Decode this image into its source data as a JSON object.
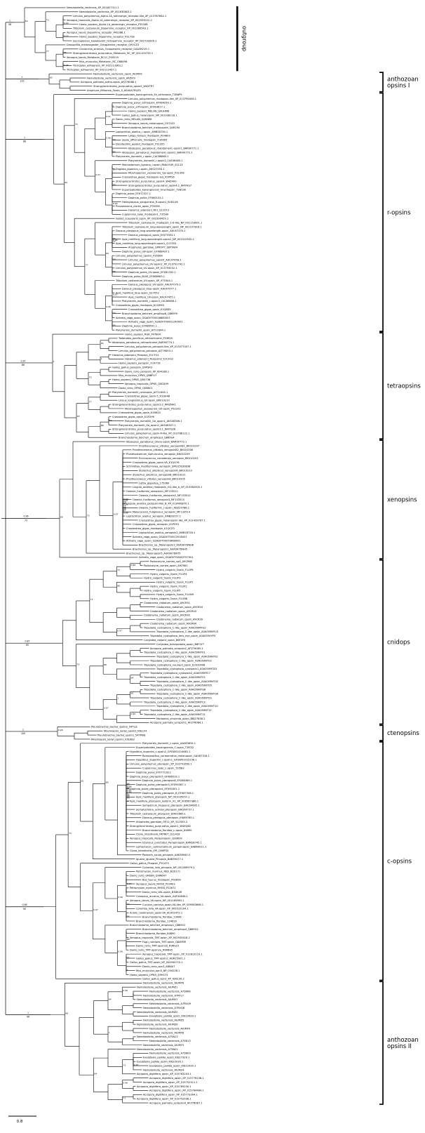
{
  "figure": {
    "background": "#ffffff",
    "line_color": "#000000",
    "scale_bar": {
      "label": "0.8"
    }
  },
  "support_pool": [
    "1",
    "100",
    "0.99",
    "98",
    "0.97",
    "96",
    "73",
    "0.92",
    "86",
    "62",
    "0.96",
    "90",
    "77",
    "0.86",
    "64",
    "0.94",
    "88",
    "0.95",
    "65",
    "0.98"
  ],
  "clades": [
    {
      "name": "outgroup",
      "marker": "bar",
      "label_lines": [
        "outgroup"
      ],
      "root_support": {
        "above": "1",
        "below": "98"
      },
      "tips": [
        "Nematostella_vectensis_XP_001627311.1",
        "Nematostella_vectensis_XP_001630803.1",
        "Limulus_polyphemus_Alpha-1A_adrenergic_receptor-like_XP_013787844.1",
        "Xenopus_tropicalis_Alpha-1A_adrenergic_receptor_XP_002933012.2",
        "Homo_sapiens_Alpha-1A_adrenergic_receptor_P35348",
        "Tribolium_castaneum_Dopamine_receptor_XP_001280543.1",
        "Xenopus_laevis_Dopamine_receptor_P42288.1",
        "Homo_sapiens_Dopamine_receptor_P21728",
        "Saccoglossus_kowalevskii_Octopamine_receptor_XP_002733926.1",
        "Drosophila_melanogaster_Octopamine_receptor_Q9VCZ3",
        "Clonorchis_sinensis_Octopamine_receptor_GAA38219.1",
        "Strongylocentrotus_purpuratus_Melatonin_RC_XP_001100735.1",
        "Xenopus_laevis_Melatonin_RC1C_P49219",
        "Mus_musculus_Melatonin_RC_O88496",
        "Trichoplax_adhaerens_XP_002113363.1",
        "Trichoplax_adhaerens_XP_002112437.1"
      ]
    },
    {
      "name": "anthozoan-opsins-I",
      "marker": "bracket",
      "label_lines": [
        "anthozoan",
        "opsins I"
      ],
      "root_support": {
        "above": "1",
        "below": "100"
      },
      "tips": [
        "Nematostella_vectensis_opsin_AIUM99",
        "Nematostella_vectensis_opsin_AKJ5V9",
        "Acropora_palmata_antho-opsin_AFZ76088.1",
        "Strongylocentrotus_purpuratus_opsin5_W4XTR7",
        "Amphiura_filiformis_Opsin_5_A0A0A7RUZ5"
      ]
    },
    {
      "name": "r-opsins",
      "marker": "bracket",
      "label_lines": [
        "r-opsins"
      ],
      "root_support": {
        "above": "1",
        "below": "88"
      },
      "tips": [
        "Euperipatoides_kanangrensis_Ek_arthropsin_T2B6P9",
        "Limulus_polyphemus_rhodopsin-like_XP_013790456.1",
        "Daphnia_pulex_arthropsin_EFX84250.1",
        "Daphnia_pulex_arthropsin_EFX63617.1",
        "Homo_sapiens_MELAN_Q9UHM6",
        "Gallus_gallus_melanopsin_NP_001038118.1",
        "Danio_rerio_MELAN_Q2KNE8",
        "Xenopus_laevis_melanopsin_O57422",
        "Branchiostoma_belcheri_melanopsin_Q4R194",
        "Leptochiton_asellus_r-opsin_AMB28726.1",
        "Loligo_forbesi_rhodopsin_P24603",
        "Sepia_officinalis_rhodopsin_O16005",
        "Doryteuthis_pealeii_rhodopsin_P31355",
        "Idiosepius_paradoxus_rhabdomeric-opsin1_BAR90771.1",
        "Idiosepius_paradoxus_rhabdomeric-opsin2_BAR90772.1",
        "Platynereis_dumerilii_r-opsin_CAC86665.1",
        "Platynereis_dumerilii_r-opsin2_CAE46485.1",
        "Macrostomum_lignano_r-opsin_RNA1509_41123",
        "Dugesia_japonica_r-opsin_AKG27054.1",
        "Mizuhopecten_yessoensis_Gq-opsin_P31356",
        "Crassostrea_gigas_rhodopsin-GQ_K1PP26",
        "Strongylocentrotus_purpuratus_opsin4_W4Z400",
        "Strongylocentrotus_purpuratus_opsin4.2_W4YHS7",
        "Euperipatoides_kanangrensis_Onychopsin_T2B530",
        "Daphnia_pulex_EFX72327.1",
        "Daphnia_pulex_EFX60131.1",
        "Hemigrapsus_sanguineus_R-opsin1_B1B1U6",
        "Procambarus_clarkii_opsin_P35356",
        "Hasarius_adansoni_Rh1_E1CFF3",
        "Cupiennius_salei_rhodopsin1_T2I5A9",
        "Ixodes_scapularis_opsin_XP_002399429.1",
        "Tribolium_castaneum_rhodopsin_1-6-like_NP_001153991.1",
        "Tribolium_castaneum_long-wavelength_opsin_NP_001107818.1",
        "Danaus_plexippus_long-wavelength-opsin_AAU07075.1",
        "Danaus_plexippus_opsin_EHJ73353.1",
        "Apis_mellifera_long-wavelength-opsin2_NP_001010932.2",
        "Apis_mellifera_long-wavelength-opsin1_Q17053",
        "Anopheles_gambiae_GPROP7_Q8T9W4",
        "Daphnia_pulex_LW-opsin_EFX88437.1",
        "Limulus_polyphemus_opsin2_P35360",
        "Limulus_polyphemus_opsin5_AAC47458.1",
        "Limulus_polyphemus_UV-opsin2_XP_013791742.1",
        "Limulus_polyphemus_UV-opsin_XP_013794152.1",
        "Daphnia_pulex_UV-opsin_EFX81332.1",
        "Daphnia_pulex_BLUE_EFX88983.1",
        "Tribolium_castaneum_UV-opsin_XP_970344.1",
        "Danaus_plexippus_UV-opsin_AAU07079.1",
        "Danaus_plexippus_blue-opsin_AAU07077.1",
        "Apis_mellifera_blue-opsin_Q17052",
        "Apis_mellifera_UV-opsin_AAC47455.1",
        "Platynereis_dumerilii_r-opsin3_CAC86658.1",
        "Crassostrea_gigas_rhodopsin_K1QMS3",
        "Crassostrea_gigas_opsin_K1Q8D5",
        "Branchiostoma_belcheri_amphiop6_Q869F9",
        "Adineta_vaga_opsin_GSADVT00026880001",
        "Adineta_vaga_opsin_GSADVT00001240001",
        "Daphnia_pulex_EFX86591.1",
        "Platynereis_dumerilii_opsin_AIT11644.1"
      ]
    },
    {
      "name": "tetraopsins",
      "marker": "bracket",
      "label_lines": [
        "tetraopsins"
      ],
      "root_support": {
        "above": "0.97",
        "below": "86"
      },
      "tips": [
        "Homo_sapiens_RGR_P47804",
        "Todarodes_pacificus_retinochrome_P23820",
        "Idiosepius_paradoxus_retinochrome_BAR90774.1",
        "Limulus_polyphemus_peropsin-like_XP_013377007.1",
        "Limulus_polyphemus_peropsin_AIT79853.1",
        "Hasarius_adansoni_Peropsin_E1CFG1",
        "Hasarius_adansoni_Peropsin2_E1CFG2",
        "Homo_sapiens_peropsin_O14718",
        "Gallus_gallus_peropsin_Q9PSR3",
        "Danio_rerio_peropsin_XP_694186.1",
        "Mus_musculus_OPN5_Q8BFU7",
        "Homo_sapiens_OPN5_Q6U736",
        "Xenopus_tropicalis_OPN5_Q0D2H9",
        "Danio_rerio_OPN5_Q08BC1",
        "Platynereis_dumerilii_neuropsin_AIT11645.1",
        "Crassostrea_gigas_opsin-5_K1QH48",
        "Lineus_longissimus_G0-opsin_BK019210",
        "Strongylocentrotus_purpuratus_opsin3.2_W4ZNH1",
        "Mizuhopecten_yessoensis_G0-opsin_P52202",
        "Crassostrea_gigas_opsin_K1R620",
        "Crassostrea_gigas_opsin_K1P2H9",
        "Platynereis_dumerilii_Go_opsin1_AKS48306.1",
        "Platynereis_dumerilii_Go_opsin2_AKS48307.1",
        "Strongylocentrotus_purpuratus_opsin3.1_W4YQ26",
        "Limulus_polyphemus_opsin-6-like_XP_013788122.1",
        "Branchiostoma_belcheri_amphiop3_Q869G4"
      ]
    },
    {
      "name": "xenopsins",
      "marker": "bracket",
      "label_lines": [
        "xenopsins"
      ],
      "root_support": {
        "above": "0.96",
        "below": "73"
      },
      "tips": [
        "Idiosepius_paradoxus_ciliary-opsin_BAR90773.1",
        "Prostheceraeus_vittatus_xenopsinB1_BK010207",
        "Prostheceraeus_vittatus_xenopsinB2_BK010206",
        "Prosthiostomum_siphunculus_xenopsin_BK010209",
        "Echinococcus_canadensis_xenopsin_BK010203",
        "Crassostrea_gigas_opsin-VA_K1QG76",
        "Schmidtea_mediterranea_xenopsin_SMU15030838",
        "Stylochus_ellipticus_xenopsinA_BK010210",
        "Stylochus_ellipticus_xenopsinB_BK010211",
        "Prostheceraeus_vittatus_xenopsinA_BK010205",
        "Lottia_gigantea_175069",
        "Lingula_anatina_rhodopsin_GQ-like_A_XP_013382905.1",
        "Owenia_fusiformis_xenopsin1_MF133511",
        "Owenia_fusiformis_xenopsin2_MF133512",
        "Owenia_fusiformis_xenopsin3_MF133513",
        "Lingula_anatina_peropsin-like_B_XP_013400870.1",
        "Owenia_fusiformis_c-opsin_ADZ24786.1",
        "Malacoceros_fuliginosus_xenopsin_MF133514",
        "Leptochiton_asellus_xenopsin_AMB28727.1",
        "Crassostrea_gigas_melanopsin-like_XP_011439767.1",
        "Crassostrea_gigas_xenopsin_K1PEH1",
        "Crassostrea_gigas_rhodopsin_K1QCZ3",
        "Leptochiton_asellus_xenopsin2_AMB28728.1",
        "Adineta_vaga_opsin_GSADVT00012018001",
        "Adineta_vaga_opsin_GSADVT00059698001",
        "Brachionus_sp._Melanopsin3_A0A0A7DNH8",
        "Brachionus_sp._Melanopsin1_A0A0A7DNH5",
        "Brachionus_sp._Melanopsin5_A0A0A7DNT5",
        "Adineta_vaga_opsin_GSADVT00063757001"
      ]
    },
    {
      "name": "cnidops",
      "marker": "bracket",
      "label_lines": [
        "cnidops"
      ],
      "root_support": {
        "above": "0.87",
        "below": "65"
      },
      "tips": [
        "Podocoryne_carnea_cpG_A9CR60",
        "Podocoryne_carnea_opsin_A9CR61",
        "Hydra_vulgaris_Opsin_F1LIP6",
        "Hydra_vulgaris_Opsin_F1LIP4",
        "Hydra_vulgaris_Opsin_F1LIP3",
        "Hydra_vulgaris_Opsin_F1LIP2",
        "Hydra_vulgaris_Opsin_F1LIP1",
        "Hydra_vulgaris_Opsin_F1LIP5",
        "Hydra_vulgaris_Opsin_F1LIN9",
        "Hydra_vulgaris_Opsin_F1LIN8",
        "Cladonema_radiatum_opsin_A9CR51",
        "Cladonema_radiatum_opsin_A9CR54",
        "Cladonema_radiatum_opsin_A9CR43",
        "Cladonema_radiatum_opsin_A9CR42",
        "Cladonema_radiatum_opsin_A9CR39",
        "Cladonema_radiatum_opsin_A9CR64",
        "Tripedalia_cystophora_C-like_opsin_A0A059MYG2",
        "Tripedalia_cystophora_C-like_opsin_A0A059NYU3",
        "Tripedalia_cystophora_lens_eye_opsin_A0A059UYP3",
        "Carybdea_rastonii_opsin_B6F0Y5",
        "Carybdea_brevipedalia_opsin_B6F0Y7",
        "Acropora_palmata_acropsin2_AFZ76085.1",
        "Tripedalia_cystophora_C-like_opsin_A0A059NT01",
        "Tripedalia_cystophora_C-like_opsin_A0A059NT02",
        "Tripedalia_cystophora_C-like_opsin_A0A059NT03",
        "Tripedalia_cystophora_neuropil_opsin_EU310498",
        "Tripedalia_cystophora_cystopsin1_A0A059MTD3",
        "Tripedalia_cystophora_cystopsin2_A0A059MTC7",
        "Tripedalia_cystophora_C-like_opsin_A0A059NTC5",
        "Tripedalia_cystophora_C-like_opsin_A0A059NTC8",
        "Tripedalia_cystophora_C-like_opsin_A0A059NTD5",
        "Tripedalia_cystophora_C-like_opsin_A0A059NTQ6",
        "Tripedalia_cystophora_C-like_opsin_A0A059NTQ9",
        "Tripedalia_cystophora_C-like_opsin_A0A059NTD1",
        "Tripedalia_cystophora_C-like_opsin_A0A059NTC3",
        "Tripedalia_cystophora_C-like_opsin_A0A059NT10",
        "Tripedalia_cystophora_C-like_opsin_A0A059NT12",
        "Tripedalia_cystophora_C-like_opsin_A0A059NT15",
        "Morbakka_virulenta_opsin_BBJ27838.1",
        "Acropora_palmata_acropsin1_AFZ76084.1"
      ]
    },
    {
      "name": "ctenopsins",
      "marker": "bracket",
      "label_lines": [
        "ctenopsins"
      ],
      "root_support": {
        "above": "1",
        "below": "100"
      },
      "tips": [
        "Pleurobrachia_bachei_opsin2_54TLJ1",
        "Mnemiopsis_leidyi_opsin2_K6LLF4",
        "Pleurobrachia_bachei_opsin1_54TM08",
        "Mnemiopsis_leidyi_opsin1_K9LK83"
      ]
    },
    {
      "name": "c-opsins",
      "marker": "bracket",
      "label_lines": [
        "c-opsins"
      ],
      "root_support": {
        "above": "0.98",
        "below": "90"
      },
      "tips": [
        "Platynereis_dumerilii_c-opsin_AAV63834.1",
        "Euperipatoides_kanangrensis_C-opsin_T2B7J2",
        "Hypsibius_dujardini_c-opsin2_GFGW01014681.1",
        "Ramazzottius_varieornatus_melanopsin_GAU87318.1",
        "Hypsibius_dujardini_c-opsin1_GFGW01015156.1",
        "Limulus_polyphemus_pteropsin_XP_013791650.1",
        "Cupiennius_salei_C-opsin_T2I5B2",
        "Daphnia_pulex_EFX77128.1",
        "Daphnia_pulex_pteropsin5_EFX86519.1",
        "Daphnia_pulex_pteropsin8_EFX86369.1",
        "Daphnia_pulex_pteropsin3_EFX90367.1",
        "Daphnia_pulex_pteropsin4_EFX90301.1",
        "Daphnia_pulex_pteropsin_B_EFX87346.1",
        "Apis_mellifera_pteropsin_NP_001035057.1",
        "Apis_mellifera_pteropsin_isoform_X1_XP_006567386.1",
        "Sympetrum_frequens_pteropsin_BAG54695.1",
        "Somatochlora_uchidai_pteropsin_BAQ54737.1",
        "Tribolium_castaneum_pteropsin_EFA01685.1",
        "Danaus_plexippus_pteropsin_EHJ69785.1",
        "Anopheles_gambiae_OP12_XP_312503.3",
        "Strongylocentrotus_purpuratus_opsin1_W4XQ82",
        "Branchiostoma_floridae_c-opsin_64890",
        "Ciona_intestinalis_PATRET_Q1L4C8",
        "Xenopus_tropicalis_Parapinopsin_Q28R39",
        "Ictalurus_punctatus_Parapinopsin_BAM28745.1",
        "Lethenteron_camtschaticum_parapinopsin_BAB69011.1",
        "Ciona_intestinalis_OPI_Q56P33",
        "Podarcis_sicula_pinopsin_AAK58940.2",
        "Iguana_iguana_Pinopsin_BAB39477.1",
        "Gallus_gallus_Pinopsin_P51475",
        "Columba_livia_pinopsin_NP_001269979.1",
        "Petromyzon_marinus_RED_B2D171",
        "Danio_rerio_GREEN_Q9W6A7",
        "Bos_taurus_rhodopsin_P02699",
        "Xenopus_laevis_RHOD_P29403",
        "Petromyzon_marinus_RHOD_P22671",
        "Danio_rerio_VAL-opsin_B3DK28",
        "Carassius_auratus_VA-opsin_AAF44648.1",
        "Xenopus_laevis_VA-opsin_NP_001165963.1",
        "Cuculus_canorus_opsin-VA-like_XP_009563698.1",
        "Columba_livia_VA-opsin_XP_005515104.1",
        "Anolis_carolinensis_opsin-VA_ACX02472.1",
        "Branchiostoma_floridae_73446",
        "Branchiostoma_floridae_124639",
        "Branchiostoma_belcheri_amphiop1_Q869G1",
        "Branchiostoma_belcheri_amphiop4_Q869G2",
        "Branchiostoma_floridae_84690",
        "Xenopus_tropicalis_TMT-opsin_XP_002933418.2",
        "Fugu_rubripes_TMT-opsin_Q8AYM9",
        "Danio_rerio_TMT-opsin1b_R9RGL5",
        "Danio_rerio_TMT-opsin2a_R9R6H5",
        "Xenopus_tropicalis_TMT-opsin_XP_012813119.1",
        "Gallus_gallus_TMT-opsin2_AQR25001.1",
        "Gallus_gallus_TMT-opsin_XP_004944715.1",
        "Danio_rerio_opn3_A8NJU7",
        "Mus_musculus_opn3_NP_034228.1",
        "Homo_sapiens_OPN3_Q9H1Y3",
        "Gallus_gallus_opn3_XP_426139.2"
      ]
    },
    {
      "name": "anthozoan-opsins-II",
      "marker": "bracket",
      "label_lines": [
        "anthozoan",
        "opsins II"
      ],
      "root_support": {
        "above": "1",
        "below": "96"
      },
      "tips": [
        "Nematostella_vectensis_AIUMY6",
        "Nematostella_vectensis_AIUMZ1",
        "Nematostella_vectensis_A7SRK8",
        "Nematostella_vectensis_A7RTL7",
        "Nematostella_vectensis_AIUMV7",
        "Nematostella_vectensis_A7RVQ9",
        "Nematostella_vectensis_A7RVQ8",
        "Nematostella_vectensis_AIUMZ2",
        "Exaiptasia_pallida_opsin_KXJ10439.1",
        "Nematostella_vectensis_AIUMZ5",
        "Nematostella_vectensis_AIUMZ0",
        "Nematostella_vectensis_AIUMY9",
        "Nematostella_vectensis_AIUMY8",
        "Nematostella_vectensis_A7SN12",
        "Nematostella_vectensis_A7SN13",
        "Nematostella_vectensis_AIUMY3",
        "Nematostella_vectensis_A7SN01",
        "Nematostella_vectensis_A7SN09",
        "Exaiptasia_pallida_opsin_KXJ27326.1",
        "Exaiptasia_pallida_opsin_KXJ22030.1",
        "Exaiptasia_pallida_opsin_KXJ12930.1",
        "Nematostella_vectensis_AIUM24",
        "Acropora_digitifera_opsin_XP_015763203.1",
        "Acropora_digitifera_opsin_XP_015776158.1",
        "Acropora_digitifera_opsin_XP_015752311.1",
        "Acropora_digitifera_opsin_XP_015769230.1",
        "Acropora_digitifera_opsin_XP_015764484.1",
        "Acropora_digitifera_opsin_XP_015773304.1",
        "Acropora_digitifera_opsin_XP_015752536.1",
        "Acropora_palmata_acropsin4_AFZ76087.1"
      ]
    }
  ]
}
